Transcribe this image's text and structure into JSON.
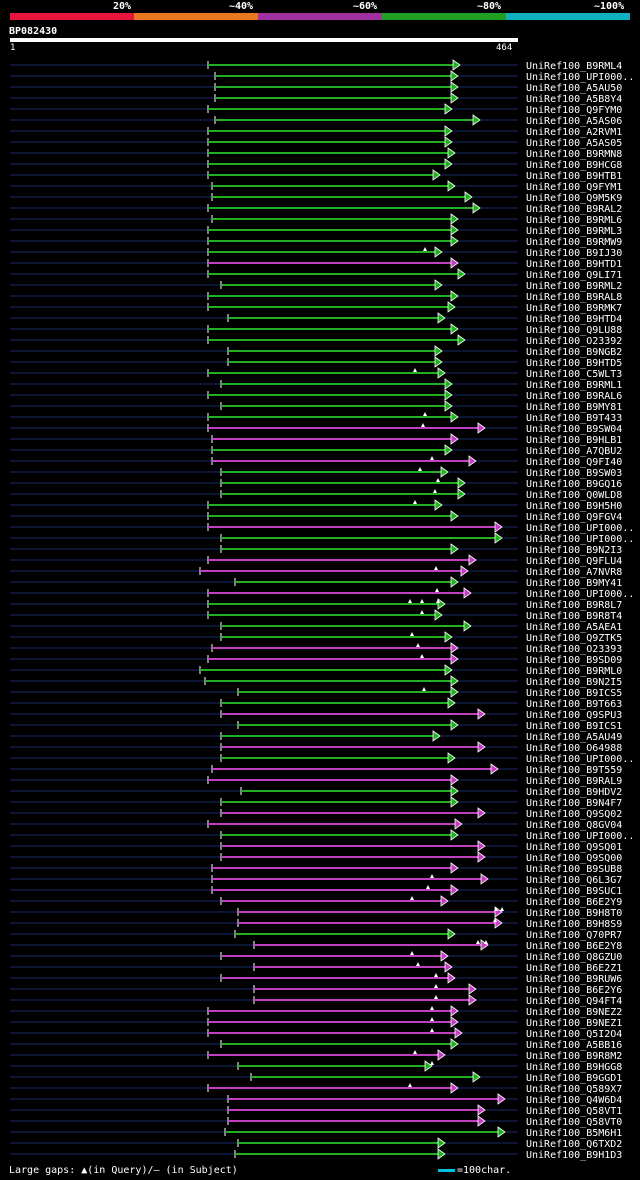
{
  "legend": {
    "segments": [
      {
        "label": "20%",
        "color": "#e8143c"
      },
      {
        "label": "~40%",
        "color": "#e8781e"
      },
      {
        "label": "~60%",
        "color": "#a030a0"
      },
      {
        "label": "~80%",
        "color": "#20a020"
      },
      {
        "label": "~100%",
        "color": "#10b0c0"
      }
    ]
  },
  "query": {
    "id": "BP082430",
    "start": "1",
    "end": "464"
  },
  "footer": {
    "gaps_text": "Large gaps: ▲(in Query)/— (in Subject)",
    "scale_text": "=100char."
  },
  "hits": [
    {
      "id": "UniRef100_B9RML4",
      "color": "green"
    },
    {
      "id": "UniRef100_UPI000..",
      "color": "green"
    },
    {
      "id": "UniRef100_A5AU50",
      "color": "green"
    },
    {
      "id": "UniRef100_A5B8Y4",
      "color": "green"
    },
    {
      "id": "UniRef100_Q9FYM0",
      "color": "green"
    },
    {
      "id": "UniRef100_A5AS06",
      "color": "green"
    },
    {
      "id": "UniRef100_A2RVM1",
      "color": "green"
    },
    {
      "id": "UniRef100_A5AS05",
      "color": "green"
    },
    {
      "id": "UniRef100_B9RMN8",
      "color": "green"
    },
    {
      "id": "UniRef100_B9HCG8",
      "color": "green"
    },
    {
      "id": "UniRef100_B9HTB1",
      "color": "green"
    },
    {
      "id": "UniRef100_Q9FYM1",
      "color": "green"
    },
    {
      "id": "UniRef100_Q9M5K9",
      "color": "green"
    },
    {
      "id": "UniRef100_B9RAL2",
      "color": "green"
    },
    {
      "id": "UniRef100_B9RML6",
      "color": "green"
    },
    {
      "id": "UniRef100_B9RML3",
      "color": "green"
    },
    {
      "id": "UniRef100_B9RMW9",
      "color": "green"
    },
    {
      "id": "UniRef100_B9IJ30",
      "color": "green"
    },
    {
      "id": "UniRef100_B9HTD1",
      "color": "magenta"
    },
    {
      "id": "UniRef100_Q9LI71",
      "color": "green"
    },
    {
      "id": "UniRef100_B9RML2",
      "color": "green"
    },
    {
      "id": "UniRef100_B9RAL8",
      "color": "green"
    },
    {
      "id": "UniRef100_B9RMK7",
      "color": "green"
    },
    {
      "id": "UniRef100_B9HTD4",
      "color": "green"
    },
    {
      "id": "UniRef100_Q9LU88",
      "color": "green"
    },
    {
      "id": "UniRef100_O23392",
      "color": "green"
    },
    {
      "id": "UniRef100_B9NGB2",
      "color": "green"
    },
    {
      "id": "UniRef100_B9HTD5",
      "color": "green"
    },
    {
      "id": "UniRef100_C5WLT3",
      "color": "green"
    },
    {
      "id": "UniRef100_B9RML1",
      "color": "green"
    },
    {
      "id": "UniRef100_B9RAL6",
      "color": "green"
    },
    {
      "id": "UniRef100_B9MY81",
      "color": "green"
    },
    {
      "id": "UniRef100_B9T433",
      "color": "green"
    },
    {
      "id": "UniRef100_B9SW04",
      "color": "magenta"
    },
    {
      "id": "UniRef100_B9HLB1",
      "color": "magenta"
    },
    {
      "id": "UniRef100_A7QBU2",
      "color": "green"
    },
    {
      "id": "UniRef100_Q9FI40",
      "color": "magenta"
    },
    {
      "id": "UniRef100_B9SW03",
      "color": "green"
    },
    {
      "id": "UniRef100_B9GQ16",
      "color": "green"
    },
    {
      "id": "UniRef100_Q0WLD8",
      "color": "green"
    },
    {
      "id": "UniRef100_B9H5H0",
      "color": "green"
    },
    {
      "id": "UniRef100_Q9FGV4",
      "color": "green"
    },
    {
      "id": "UniRef100_UPI000..",
      "color": "magenta"
    },
    {
      "id": "UniRef100_UPI000..",
      "color": "green"
    },
    {
      "id": "UniRef100_B9N2I3",
      "color": "green"
    },
    {
      "id": "UniRef100_Q9FLU4",
      "color": "magenta"
    },
    {
      "id": "UniRef100_A7NVR8",
      "color": "magenta"
    },
    {
      "id": "UniRef100_B9MY41",
      "color": "green"
    },
    {
      "id": "UniRef100_UPI000..",
      "color": "magenta"
    },
    {
      "id": "UniRef100_B9R8L7",
      "color": "green"
    },
    {
      "id": "UniRef100_B9R8T4",
      "color": "green"
    },
    {
      "id": "UniRef100_A5AEA1",
      "color": "green"
    },
    {
      "id": "UniRef100_Q9ZTK5",
      "color": "green"
    },
    {
      "id": "UniRef100_O23393",
      "color": "magenta"
    },
    {
      "id": "UniRef100_B9SD09",
      "color": "magenta"
    },
    {
      "id": "UniRef100_B9RML0",
      "color": "green"
    },
    {
      "id": "UniRef100_B9N2I5",
      "color": "green"
    },
    {
      "id": "UniRef100_B9ICS5",
      "color": "green"
    },
    {
      "id": "UniRef100_B9T663",
      "color": "green"
    },
    {
      "id": "UniRef100_Q9SPU3",
      "color": "magenta"
    },
    {
      "id": "UniRef100_B9ICS1",
      "color": "green"
    },
    {
      "id": "UniRef100_A5AU49",
      "color": "green"
    },
    {
      "id": "UniRef100_O64988",
      "color": "magenta"
    },
    {
      "id": "UniRef100_UPI000..",
      "color": "green"
    },
    {
      "id": "UniRef100_B9T559",
      "color": "magenta"
    },
    {
      "id": "UniRef100_B9RAL9",
      "color": "magenta"
    },
    {
      "id": "UniRef100_B9HDV2",
      "color": "green"
    },
    {
      "id": "UniRef100_B9N4F7",
      "color": "green"
    },
    {
      "id": "UniRef100_Q9SQ02",
      "color": "magenta"
    },
    {
      "id": "UniRef100_Q8GV04",
      "color": "magenta"
    },
    {
      "id": "UniRef100_UPI000..",
      "color": "green"
    },
    {
      "id": "UniRef100_Q9SQ01",
      "color": "magenta"
    },
    {
      "id": "UniRef100_Q9SQ00",
      "color": "magenta"
    },
    {
      "id": "UniRef100_B9SUB8",
      "color": "magenta"
    },
    {
      "id": "UniRef100_Q6L3G7",
      "color": "magenta"
    },
    {
      "id": "UniRef100_B9SUC1",
      "color": "magenta"
    },
    {
      "id": "UniRef100_B6E2Y9",
      "color": "magenta"
    },
    {
      "id": "UniRef100_B9H8T0",
      "color": "magenta"
    },
    {
      "id": "UniRef100_B9H8S9",
      "color": "magenta"
    },
    {
      "id": "UniRef100_Q70PR7",
      "color": "green"
    },
    {
      "id": "UniRef100_B6E2Y8",
      "color": "magenta"
    },
    {
      "id": "UniRef100_Q8GZU0",
      "color": "magenta"
    },
    {
      "id": "UniRef100_B6E2Z1",
      "color": "magenta"
    },
    {
      "id": "UniRef100_B9RUW6",
      "color": "magenta"
    },
    {
      "id": "UniRef100_B6E2Y6",
      "color": "magenta"
    },
    {
      "id": "UniRef100_Q94FT4",
      "color": "magenta"
    },
    {
      "id": "UniRef100_B9NEZ2",
      "color": "magenta"
    },
    {
      "id": "UniRef100_B9NEZ1",
      "color": "magenta"
    },
    {
      "id": "UniRef100_Q5I2O4",
      "color": "magenta"
    },
    {
      "id": "UniRef100_A5BB16",
      "color": "green"
    },
    {
      "id": "UniRef100_B9R8M2",
      "color": "magenta"
    },
    {
      "id": "UniRef100_B9HGG8",
      "color": "green"
    },
    {
      "id": "UniRef100_B9GGD1",
      "color": "green"
    },
    {
      "id": "UniRef100_Q589X7",
      "color": "magenta"
    },
    {
      "id": "UniRef100_Q4W6D4",
      "color": "magenta"
    },
    {
      "id": "UniRef100_Q58VT1",
      "color": "magenta"
    },
    {
      "id": "UniRef100_Q58VT0",
      "color": "magenta"
    },
    {
      "id": "UniRef100_B5M6H1",
      "color": "green"
    },
    {
      "id": "UniRef100_Q6TXD2",
      "color": "green"
    },
    {
      "id": "UniRef100_B9H1D3",
      "color": "green"
    }
  ]
}
